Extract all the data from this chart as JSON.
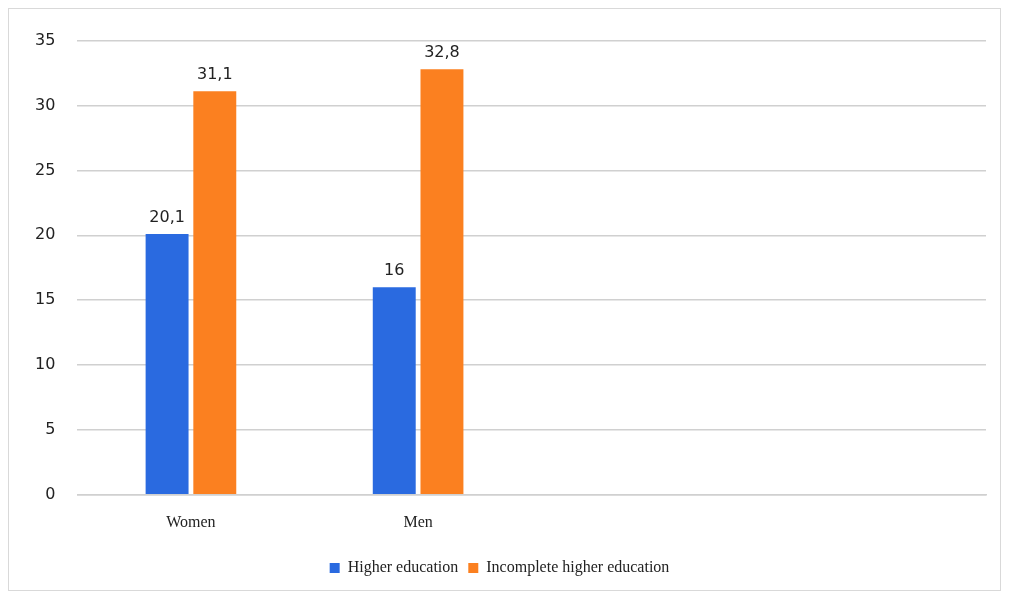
{
  "chart_data": {
    "type": "bar",
    "categories": [
      "Women",
      "Men",
      null,
      null
    ],
    "series": [
      {
        "name": "Higher education",
        "color": "#2a6ae0",
        "values": [
          20.1,
          16,
          null,
          null
        ],
        "value_labels": [
          "20,1",
          "16",
          null,
          null
        ]
      },
      {
        "name": "Incomplete higher education",
        "color": "#fb8020",
        "values": [
          31.1,
          32.8,
          null,
          null
        ],
        "value_labels": [
          "31,1",
          "32,8",
          null,
          null
        ]
      }
    ],
    "ylim": [
      0,
      35
    ],
    "yticks": [
      0,
      5,
      10,
      15,
      20,
      25,
      30,
      35
    ],
    "grid": "y",
    "legend": "bottom"
  }
}
